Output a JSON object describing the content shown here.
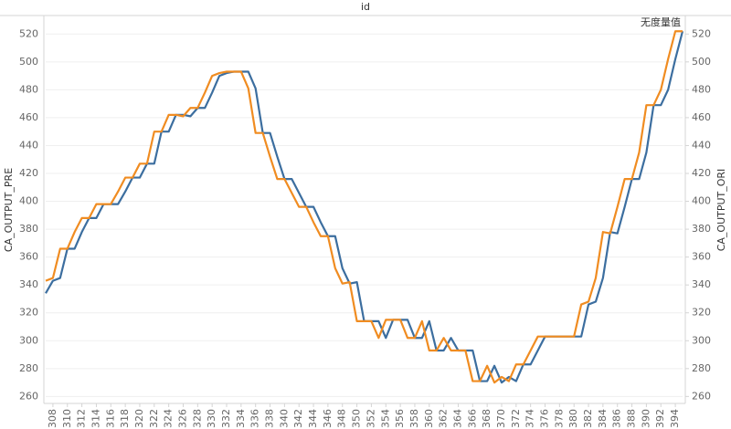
{
  "chart_data": {
    "type": "line",
    "title": "id",
    "annotation": "无度量值",
    "y_label": "CA_OUTPUT_PRE",
    "y2_label": "CA_OUTPUT_ORI",
    "x": [
      307,
      308,
      309,
      310,
      311,
      312,
      313,
      314,
      315,
      316,
      317,
      318,
      319,
      320,
      321,
      322,
      323,
      324,
      325,
      326,
      327,
      328,
      329,
      330,
      331,
      332,
      333,
      334,
      335,
      336,
      337,
      338,
      339,
      340,
      341,
      342,
      343,
      344,
      345,
      346,
      347,
      348,
      349,
      350,
      351,
      352,
      353,
      354,
      355,
      356,
      357,
      358,
      359,
      360,
      361,
      362,
      363,
      364,
      365,
      366,
      367,
      368,
      369,
      370,
      371,
      372,
      373,
      374,
      375,
      376,
      377,
      378,
      379,
      380,
      381,
      382,
      383,
      384,
      385,
      386,
      387,
      388,
      389,
      390,
      391,
      392,
      393,
      394,
      395
    ],
    "series": [
      {
        "name": "CA_OUTPUT_PRE",
        "color": "#3c6e9f",
        "axis": "y",
        "values": [
          334,
          343,
          345,
          366,
          366,
          378,
          388,
          388,
          398,
          398,
          398,
          407,
          417,
          417,
          427,
          427,
          450,
          450,
          462,
          462,
          461,
          467,
          467,
          478,
          490,
          492,
          493,
          493,
          493,
          481,
          449,
          449,
          432,
          416,
          416,
          406,
          396,
          396,
          385,
          375,
          375,
          352,
          341,
          342,
          314,
          314,
          314,
          302,
          315,
          315,
          315,
          302,
          302,
          314,
          293,
          293,
          302,
          293,
          293,
          293,
          271,
          271,
          282,
          270,
          274,
          271,
          283,
          283,
          293,
          303,
          303,
          303,
          303,
          303,
          303,
          326,
          328,
          345,
          378,
          377,
          396,
          416,
          416,
          435,
          469,
          469,
          480,
          502,
          522
        ]
      },
      {
        "name": "CA_OUTPUT_ORI",
        "color": "#f08c21",
        "axis": "y2",
        "values": [
          343,
          345,
          366,
          366,
          378,
          388,
          388,
          398,
          398,
          398,
          407,
          417,
          417,
          427,
          427,
          450,
          450,
          462,
          462,
          461,
          467,
          467,
          478,
          490,
          492,
          493,
          493,
          493,
          481,
          449,
          449,
          432,
          416,
          416,
          406,
          396,
          396,
          385,
          375,
          375,
          352,
          341,
          342,
          314,
          314,
          314,
          302,
          315,
          315,
          315,
          302,
          302,
          314,
          293,
          293,
          302,
          293,
          293,
          293,
          271,
          271,
          282,
          270,
          274,
          271,
          283,
          283,
          293,
          303,
          303,
          303,
          303,
          303,
          303,
          326,
          328,
          345,
          378,
          377,
          396,
          416,
          416,
          435,
          469,
          469,
          480,
          502,
          522,
          522
        ]
      }
    ],
    "xlim": [
      307,
      395
    ],
    "xticks": [
      308,
      310,
      312,
      314,
      316,
      318,
      320,
      322,
      324,
      326,
      328,
      330,
      332,
      334,
      336,
      338,
      340,
      342,
      344,
      346,
      348,
      350,
      352,
      354,
      356,
      358,
      360,
      362,
      364,
      366,
      368,
      370,
      372,
      374,
      376,
      378,
      380,
      382,
      384,
      386,
      388,
      390,
      392,
      394
    ],
    "ylim": [
      255,
      530
    ],
    "yticks": [
      260,
      280,
      300,
      320,
      340,
      360,
      380,
      400,
      420,
      440,
      460,
      480,
      500,
      520
    ],
    "y2lim": [
      255,
      530
    ],
    "y2ticks": [
      260,
      280,
      300,
      320,
      340,
      360,
      380,
      400,
      420,
      440,
      460,
      480,
      500,
      520
    ],
    "grid": true
  }
}
